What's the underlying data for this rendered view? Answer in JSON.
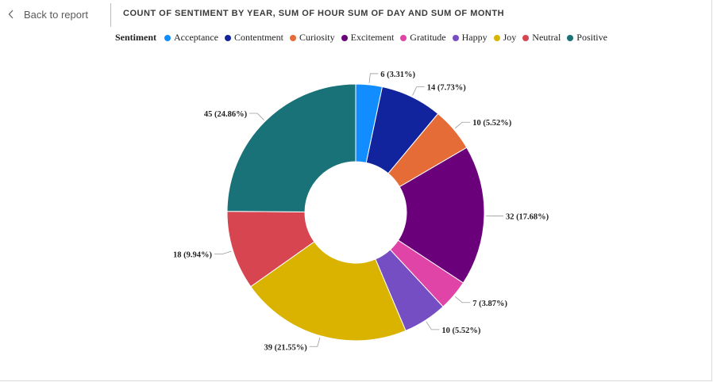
{
  "header": {
    "back_label": "Back to report",
    "title": "COUNT OF SENTIMENT BY YEAR, SUM OF HOUR SUM OF DAY AND SUM OF MONTH"
  },
  "legend": {
    "title": "Sentiment"
  },
  "chart_data": {
    "type": "pie",
    "donut": true,
    "legend_position": "top",
    "categories": [
      "Acceptance",
      "Contentment",
      "Curiosity",
      "Excitement",
      "Gratitude",
      "Happy",
      "Joy",
      "Neutral",
      "Positive"
    ],
    "values": [
      6,
      14,
      10,
      32,
      7,
      10,
      39,
      18,
      45
    ],
    "labels": [
      "6 (3.31%)",
      "14 (7.73%)",
      "10 (5.52%)",
      "32 (17.68%)",
      "7 (3.87%)",
      "10 (5.52%)",
      "39 (21.55%)",
      "18 (9.94%)",
      "45 (24.86%)"
    ],
    "colors": [
      "#118DFF",
      "#12239E",
      "#E66C37",
      "#6B007B",
      "#E044A7",
      "#744EC2",
      "#D9B300",
      "#D64550",
      "#197278"
    ]
  }
}
